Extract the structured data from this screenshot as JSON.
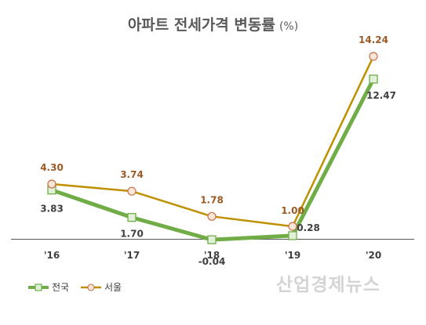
{
  "chart_data": {
    "type": "line",
    "title": "아파트 전세가격 변동률",
    "unit": "(%)",
    "categories": [
      "'16",
      "'17",
      "'18",
      "'19",
      "'20"
    ],
    "series": [
      {
        "name": "전국",
        "values": [
          3.83,
          1.7,
          -0.04,
          0.28,
          12.47
        ],
        "labels": [
          "3.83",
          "1.70",
          "-0.04",
          "0.28",
          "12.47"
        ],
        "color": "#70ad47",
        "marker": "square"
      },
      {
        "name": "서울",
        "values": [
          4.3,
          3.74,
          1.78,
          1.0,
          14.24
        ],
        "labels": [
          "4.30",
          "3.74",
          "1.78",
          "1.00",
          "14.24"
        ],
        "color": "#bf9000",
        "marker": "circle"
      }
    ],
    "legend": "bottom-left",
    "grid": false
  },
  "watermark": "산업경제뉴스",
  "colors": {
    "national_line": "#70ad47",
    "national_label": "#404040",
    "seoul_line": "#bf9000",
    "seoul_label": "#9c5a25",
    "marker_fill": "#fbe5d6",
    "marker_square_fill": "#e2efd9",
    "axis": "#595959"
  }
}
